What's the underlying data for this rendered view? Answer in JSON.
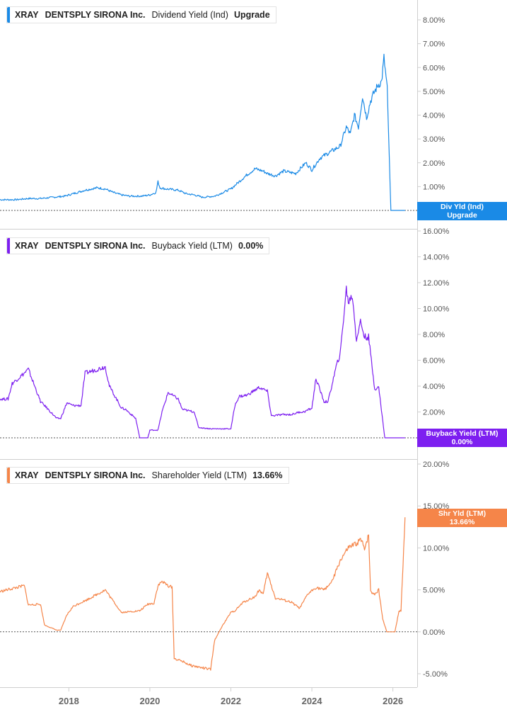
{
  "colors": {
    "dividend": "#1a8ae6",
    "buyback": "#7d1ff0",
    "shareholder": "#f58549"
  },
  "legends": [
    {
      "ticker": "XRAY",
      "company": "DENTSPLY SIRONA Inc.",
      "metric": "Dividend Yield (Ind)",
      "value": "Upgrade"
    },
    {
      "ticker": "XRAY",
      "company": "DENTSPLY SIRONA Inc.",
      "metric": "Buyback Yield (LTM)",
      "value": "0.00%"
    },
    {
      "ticker": "XRAY",
      "company": "DENTSPLY SIRONA Inc.",
      "metric": "Shareholder Yield (LTM)",
      "value": "13.66%"
    }
  ],
  "tags": [
    {
      "line1": "Div Yld (Ind)",
      "line2": "Upgrade"
    },
    {
      "line1": "Buyback Yield (LTM)",
      "line2": "0.00%"
    },
    {
      "line1": "Shr Yld (LTM)",
      "line2": "13.66%"
    }
  ],
  "chart_data": [
    {
      "type": "line",
      "series": [
        {
          "name": "Dividend Yield (Ind)",
          "x": [
            2016.3,
            2016.7,
            2017.0,
            2017.3,
            2017.6,
            2017.9,
            2018.1,
            2018.4,
            2018.7,
            2018.9,
            2019.1,
            2019.3,
            2019.5,
            2019.8,
            2020.0,
            2020.15,
            2020.2,
            2020.25,
            2020.4,
            2020.7,
            2020.9,
            2021.1,
            2021.3,
            2021.6,
            2021.8,
            2022.0,
            2022.2,
            2022.4,
            2022.6,
            2022.8,
            2022.9,
            2023.1,
            2023.3,
            2023.6,
            2023.85,
            2024.0,
            2024.2,
            2024.5,
            2024.7,
            2024.85,
            2024.95,
            2025.05,
            2025.15,
            2025.25,
            2025.35,
            2025.45,
            2025.55,
            2025.65,
            2025.72,
            2025.78,
            2025.83,
            2025.86,
            2025.95,
            2026.3
          ],
          "y": [
            0.45,
            0.45,
            0.5,
            0.5,
            0.55,
            0.6,
            0.7,
            0.85,
            0.95,
            0.9,
            0.75,
            0.65,
            0.6,
            0.6,
            0.65,
            0.75,
            1.2,
            0.95,
            0.9,
            0.85,
            0.7,
            0.65,
            0.55,
            0.6,
            0.75,
            0.9,
            1.2,
            1.5,
            1.75,
            1.65,
            1.55,
            1.45,
            1.65,
            1.55,
            2.0,
            1.7,
            2.2,
            2.5,
            2.7,
            3.5,
            3.2,
            4.0,
            3.5,
            4.8,
            3.9,
            4.6,
            5.0,
            5.3,
            5.4,
            6.4,
            5.6,
            5.1,
            0.0,
            0.0
          ]
        }
      ],
      "ylim": [
        0,
        8
      ],
      "yticks": [
        "0.00%",
        "1.00%",
        "2.00%",
        "3.00%",
        "4.00%",
        "5.00%",
        "6.00%",
        "7.00%",
        "8.00%"
      ]
    },
    {
      "type": "line",
      "series": [
        {
          "name": "Buyback Yield (LTM)",
          "x": [
            2016.3,
            2016.5,
            2016.6,
            2016.9,
            2017.0,
            2017.3,
            2017.4,
            2017.7,
            2017.8,
            2017.95,
            2018.1,
            2018.3,
            2018.4,
            2018.9,
            2019.0,
            2019.3,
            2019.4,
            2019.65,
            2019.75,
            2019.95,
            2020.0,
            2020.2,
            2020.3,
            2020.45,
            2020.7,
            2020.8,
            2021.1,
            2021.2,
            2021.5,
            2021.6,
            2022.0,
            2022.1,
            2022.2,
            2022.4,
            2022.7,
            2022.9,
            2023.0,
            2023.3,
            2023.5,
            2023.7,
            2023.8,
            2024.0,
            2024.1,
            2024.3,
            2024.4,
            2024.6,
            2024.7,
            2024.85,
            2024.9,
            2025.0,
            2025.1,
            2025.2,
            2025.3,
            2025.4,
            2025.55,
            2025.65,
            2025.8,
            2025.9,
            2026.0,
            2026.3
          ],
          "y": [
            3.0,
            3.0,
            4.2,
            5.0,
            5.3,
            2.8,
            2.5,
            1.5,
            1.5,
            2.7,
            2.5,
            2.5,
            5.0,
            5.5,
            4.0,
            2.3,
            2.2,
            1.5,
            0.0,
            0.0,
            0.6,
            0.6,
            2.0,
            3.5,
            3.0,
            2.2,
            2.0,
            0.8,
            0.7,
            0.7,
            0.7,
            2.5,
            3.2,
            3.3,
            3.9,
            3.6,
            1.7,
            1.8,
            1.8,
            2.0,
            2.0,
            2.3,
            4.6,
            2.8,
            2.8,
            5.5,
            6.5,
            11.5,
            10.5,
            11.0,
            7.6,
            9.0,
            7.8,
            7.8,
            3.8,
            3.9,
            0.0,
            0.0,
            0.0,
            0.0
          ]
        }
      ],
      "ylim": [
        0,
        16
      ],
      "yticks": [
        "0.00%",
        "2.00%",
        "4.00%",
        "6.00%",
        "8.00%",
        "10.00%",
        "12.00%",
        "14.00%",
        "16.00%"
      ]
    },
    {
      "type": "line",
      "series": [
        {
          "name": "Shareholder Yield (LTM)",
          "x": [
            2016.3,
            2016.9,
            2017.0,
            2017.3,
            2017.4,
            2017.7,
            2017.8,
            2017.95,
            2018.1,
            2018.3,
            2018.4,
            2018.9,
            2019.0,
            2019.3,
            2019.5,
            2019.75,
            2019.95,
            2020.1,
            2020.2,
            2020.3,
            2020.45,
            2020.55,
            2020.6,
            2020.8,
            2021.0,
            2021.2,
            2021.5,
            2021.6,
            2021.8,
            2022.0,
            2022.1,
            2022.3,
            2022.6,
            2022.7,
            2022.8,
            2022.9,
            2023.1,
            2023.3,
            2023.5,
            2023.7,
            2023.9,
            2024.1,
            2024.3,
            2024.5,
            2024.7,
            2024.9,
            2025.1,
            2025.2,
            2025.3,
            2025.4,
            2025.45,
            2025.55,
            2025.65,
            2025.75,
            2025.85,
            2025.95,
            2026.05,
            2026.15,
            2026.2,
            2026.3
          ],
          "y": [
            4.8,
            5.5,
            3.2,
            3.3,
            0.8,
            0.2,
            0.2,
            2.0,
            3.0,
            3.5,
            3.7,
            5.0,
            4.3,
            2.3,
            2.4,
            2.5,
            3.3,
            3.4,
            5.5,
            6.0,
            5.5,
            5.3,
            -3.2,
            -3.5,
            -4.0,
            -4.2,
            -4.5,
            -1.0,
            0.8,
            2.3,
            2.5,
            3.5,
            4.2,
            5.0,
            4.5,
            7.0,
            4.0,
            3.8,
            3.5,
            2.8,
            4.5,
            5.3,
            5.0,
            6.0,
            8.5,
            10.0,
            10.5,
            11.0,
            10.0,
            11.5,
            4.8,
            4.5,
            5.0,
            1.5,
            0.0,
            0.0,
            0.0,
            2.5,
            2.5,
            13.66
          ]
        }
      ],
      "ylim": [
        -6,
        20
      ],
      "yticks": [
        "-5.00%",
        "0.00%",
        "5.00%",
        "10.00%",
        "15.00%",
        "20.00%"
      ]
    }
  ],
  "x_axis": {
    "labels": [
      "2018",
      "2020",
      "2022",
      "2024",
      "2026"
    ],
    "xlim": [
      2016.3,
      2026.6
    ]
  }
}
